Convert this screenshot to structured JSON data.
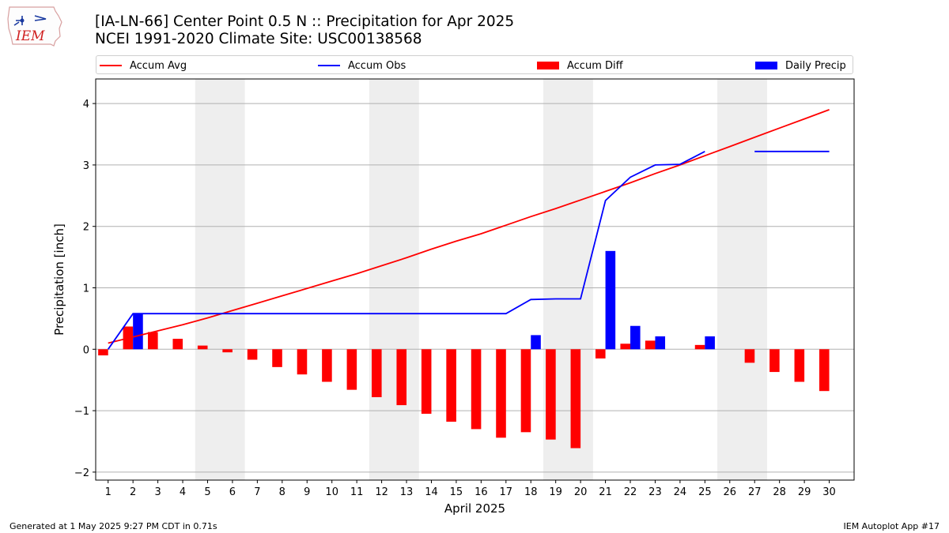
{
  "header": {
    "logo_text": "IEM",
    "title_line1": "[IA-LN-66] Center Point 0.5 N :: Precipitation for Apr 2025",
    "title_line2": "NCEI 1991-2020 Climate Site: USC00138568"
  },
  "legend": {
    "placement": "top",
    "items": [
      {
        "label": "Accum Avg",
        "kind": "line",
        "color": "#ff0000"
      },
      {
        "label": "Accum Obs",
        "kind": "line",
        "color": "#0000ff"
      },
      {
        "label": "Accum Diff",
        "kind": "box",
        "color": "#ff0000"
      },
      {
        "label": "Daily Precip",
        "kind": "box",
        "color": "#0000ff"
      }
    ]
  },
  "footer": {
    "left": "Generated at 1 May 2025 9:27 PM CDT in 0.71s",
    "right": "IEM Autoplot App #17"
  },
  "chart_data": {
    "type": "bar",
    "xlabel": "April 2025",
    "ylabel": "Precipitation [inch]",
    "xlim": [
      0.5,
      31
    ],
    "ylim": [
      -2.13,
      4.4
    ],
    "grid": "horizontal",
    "yticks": [
      -2,
      -1,
      0,
      1,
      2,
      3,
      4
    ],
    "ytick_labels": [
      "−2",
      "−1",
      "0",
      "1",
      "2",
      "3",
      "4"
    ],
    "days": [
      1,
      2,
      3,
      4,
      5,
      6,
      7,
      8,
      9,
      10,
      11,
      12,
      13,
      14,
      15,
      16,
      17,
      18,
      19,
      20,
      21,
      22,
      23,
      24,
      25,
      26,
      27,
      28,
      29,
      30
    ],
    "weekend_bands": [
      [
        4.5,
        6.5
      ],
      [
        11.5,
        13.5
      ],
      [
        18.5,
        20.5
      ],
      [
        25.5,
        27.5
      ]
    ],
    "accum_avg": [
      0.1,
      0.2,
      0.3,
      0.4,
      0.51,
      0.63,
      0.75,
      0.87,
      0.99,
      1.11,
      1.23,
      1.36,
      1.49,
      1.63,
      1.76,
      1.88,
      2.02,
      2.16,
      2.29,
      2.43,
      2.57,
      2.71,
      2.86,
      3.0,
      3.15,
      3.3,
      3.45,
      3.6,
      3.75,
      3.9
    ],
    "accum_obs": [
      0.0,
      0.58,
      0.58,
      0.58,
      0.58,
      0.58,
      0.58,
      0.58,
      0.58,
      0.58,
      0.58,
      0.58,
      0.58,
      0.58,
      0.58,
      0.58,
      0.58,
      0.81,
      0.82,
      0.82,
      2.42,
      2.8,
      3.0,
      3.01,
      3.22,
      null,
      3.22,
      3.22,
      3.22,
      3.22
    ],
    "accum_diff": [
      -0.1,
      0.37,
      0.28,
      0.17,
      0.06,
      -0.05,
      -0.17,
      -0.29,
      -0.41,
      -0.53,
      -0.66,
      -0.78,
      -0.91,
      -1.05,
      -1.18,
      -1.3,
      -1.44,
      -1.35,
      -1.47,
      -1.61,
      -0.15,
      0.09,
      0.14,
      0.0,
      0.07,
      0.0,
      -0.22,
      -0.37,
      -0.53,
      -0.68
    ],
    "daily_precip": [
      0.0,
      0.58,
      0.0,
      0.0,
      0.0,
      0.0,
      0.0,
      0.0,
      0.0,
      0.0,
      0.0,
      0.0,
      0.0,
      0.0,
      0.0,
      0.0,
      0.0,
      0.23,
      0.0,
      0.0,
      1.6,
      0.38,
      0.21,
      0.0,
      0.21,
      0.0,
      0.0,
      0.0,
      0.0,
      0.0
    ],
    "series": [
      {
        "name": "Accum Avg",
        "color": "#ff0000"
      },
      {
        "name": "Accum Obs",
        "color": "#0000ff"
      },
      {
        "name": "Accum Diff",
        "color": "#ff0000"
      },
      {
        "name": "Daily Precip",
        "color": "#0000ff"
      }
    ]
  }
}
